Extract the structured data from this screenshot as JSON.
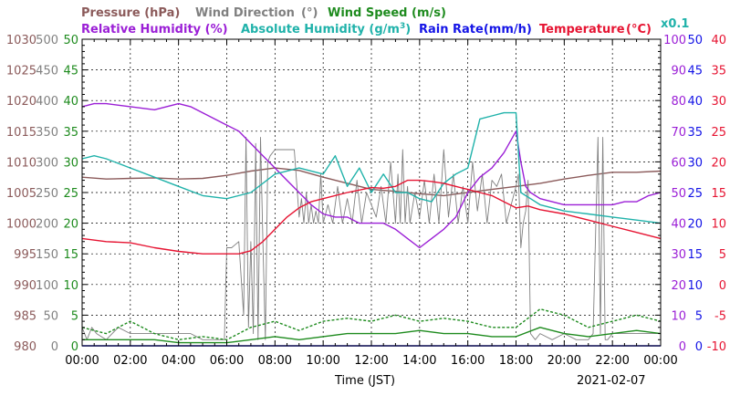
{
  "chart_data": {
    "type": "line",
    "date": "2021-02-07",
    "xlabel": "Time (JST)",
    "x_ticks": [
      "00:00",
      "02:00",
      "04:00",
      "06:00",
      "08:00",
      "10:00",
      "12:00",
      "14:00",
      "16:00",
      "18:00",
      "20:00",
      "22:00",
      "00:00"
    ],
    "grid": true,
    "axes": {
      "pressure": {
        "label": "Pressure (hPa)",
        "min": 980,
        "max": 1030,
        "ticks": [
          1030,
          1025,
          1020,
          1015,
          1010,
          1005,
          1000,
          995,
          990,
          985,
          980
        ],
        "color": "#8B5A5A"
      },
      "wind_direction": {
        "label": "Wind Direction",
        "unit": "(°)",
        "min": 0,
        "max": 500,
        "ticks": [
          500,
          450,
          400,
          350,
          300,
          250,
          200,
          150,
          100,
          50,
          0
        ],
        "color": "#808080"
      },
      "wind_speed": {
        "label": "Wind Speed (m/s)",
        "min": 0,
        "max": 50,
        "ticks": [
          50,
          45,
          40,
          35,
          30,
          25,
          20,
          15,
          10,
          5,
          0
        ],
        "color": "#1E8B1E"
      },
      "humidity": {
        "label": "Relative Humidity (%)",
        "min": 0,
        "max": 100,
        "ticks": [
          100,
          90,
          80,
          70,
          60,
          50,
          40,
          30,
          20,
          10,
          0
        ],
        "color": "#9B1FD6"
      },
      "rain_rate": {
        "label": "Rain Rate(mm/h)",
        "min": 0,
        "max": 50,
        "ticks": [
          50,
          45,
          40,
          35,
          30,
          25,
          20,
          15,
          10,
          5,
          0
        ],
        "color": "#1414E6"
      },
      "temperature": {
        "label": "Temperature",
        "unit": "(°C)",
        "min": -10,
        "max": 40,
        "ticks": [
          40,
          35,
          30,
          25,
          20,
          15,
          10,
          5,
          0,
          -5,
          -10
        ],
        "color": "#E61432"
      }
    },
    "abs_humidity_label": "Absolute Humidity (g/m",
    "abs_humidity_sup": "3",
    "abs_humidity_suffix": ")",
    "abs_humidity_scale": "x0.1",
    "abs_humidity_color": "#20B2AA",
    "series": [
      {
        "name": "Pressure (hPa)",
        "axis": "pressure",
        "color": "#8B5A5A",
        "x": [
          0,
          1,
          2,
          3,
          4,
          5,
          6,
          7,
          8,
          9,
          10,
          11,
          12,
          13,
          14,
          15,
          16,
          17,
          18,
          19,
          20,
          21,
          22,
          23,
          24
        ],
        "y": [
          1007.5,
          1007.2,
          1007.3,
          1007.4,
          1007.2,
          1007.3,
          1007.8,
          1008.5,
          1009,
          1008.6,
          1007.5,
          1006.5,
          1005.5,
          1005.2,
          1004.8,
          1004.5,
          1005,
          1005.5,
          1006,
          1006.5,
          1007.2,
          1007.8,
          1008.3,
          1008.3,
          1008.5
        ]
      },
      {
        "name": "Wind Direction (°)",
        "axis": "wind_direction",
        "color": "#808080",
        "x": [
          0,
          0.2,
          0.4,
          0.6,
          1,
          1.5,
          2,
          2.5,
          3,
          3.5,
          4,
          4.5,
          5,
          5.5,
          5.9,
          6,
          6.2,
          6.5,
          6.7,
          6.8,
          6.9,
          7,
          7.1,
          7.2,
          7.3,
          7.4,
          7.5,
          7.6,
          7.7,
          7.8,
          8,
          8.2,
          8.5,
          8.8,
          9,
          9.1,
          9.2,
          9.3,
          9.4,
          9.5,
          9.6,
          9.7,
          9.8,
          9.9,
          10,
          10.2,
          10.4,
          10.6,
          10.8,
          11,
          11.2,
          11.4,
          11.6,
          11.8,
          12,
          12.2,
          12.4,
          12.6,
          12.8,
          13,
          13.1,
          13.2,
          13.3,
          13.4,
          13.5,
          13.6,
          13.8,
          14,
          14.2,
          14.4,
          14.6,
          14.8,
          15,
          15.2,
          15.4,
          15.6,
          15.8,
          16,
          16.2,
          16.4,
          16.6,
          16.8,
          17,
          17.2,
          17.4,
          17.6,
          17.8,
          18,
          18.1,
          18.2,
          18.3,
          18.4,
          18.5,
          18.6,
          18.8,
          19,
          19.5,
          20,
          20.5,
          21,
          21.2,
          21.4,
          21.5,
          21.6,
          21.7,
          21.8,
          22,
          22.5,
          23,
          23.5,
          24
        ],
        "y": [
          30,
          10,
          30,
          20,
          10,
          30,
          20,
          20,
          20,
          20,
          20,
          20,
          10,
          10,
          10,
          160,
          160,
          170,
          50,
          340,
          30,
          170,
          20,
          330,
          10,
          340,
          170,
          10,
          300,
          310,
          320,
          320,
          320,
          320,
          210,
          240,
          200,
          250,
          200,
          230,
          200,
          220,
          200,
          280,
          200,
          230,
          200,
          260,
          200,
          240,
          200,
          270,
          200,
          250,
          230,
          210,
          260,
          200,
          300,
          200,
          280,
          200,
          320,
          200,
          260,
          200,
          250,
          210,
          270,
          200,
          280,
          200,
          320,
          210,
          280,
          200,
          260,
          200,
          300,
          220,
          280,
          200,
          270,
          260,
          280,
          200,
          230,
          260,
          280,
          160,
          200,
          220,
          270,
          20,
          10,
          20,
          10,
          20,
          10,
          10,
          20,
          340,
          20,
          340,
          10,
          10,
          20,
          20,
          20,
          20,
          20
        ]
      },
      {
        "name": "Wind Speed avg (m/s)",
        "axis": "wind_speed",
        "color": "#1E8B1E",
        "x": [
          0,
          1,
          2,
          3,
          4,
          5,
          6,
          7,
          8,
          9,
          10,
          11,
          12,
          13,
          14,
          15,
          16,
          17,
          18,
          19,
          20,
          21,
          22,
          23,
          24
        ],
        "y": [
          1,
          1,
          1,
          1,
          0.5,
          0.5,
          0.5,
          1,
          1.5,
          1,
          1.5,
          2,
          2,
          2,
          2.5,
          2,
          2,
          1.5,
          1.5,
          3,
          2,
          1.5,
          2,
          2.5,
          2
        ]
      },
      {
        "name": "Wind Speed max (m/s)",
        "axis": "wind_speed",
        "color": "#1E8B1E",
        "dashed": true,
        "x": [
          0,
          1,
          2,
          3,
          4,
          5,
          6,
          7,
          8,
          9,
          10,
          11,
          12,
          13,
          14,
          15,
          16,
          17,
          18,
          19,
          20,
          21,
          22,
          23,
          24
        ],
        "y": [
          3,
          2,
          4,
          2,
          1,
          1.5,
          1,
          3,
          4,
          2.5,
          4,
          4.5,
          4,
          5,
          4,
          4.5,
          4,
          3,
          3,
          6,
          5,
          3,
          4,
          5,
          4
        ]
      },
      {
        "name": "Relative Humidity (%)",
        "axis": "humidity",
        "color": "#9B1FD6",
        "x": [
          0,
          0.5,
          1,
          2,
          3,
          4,
          4.5,
          5,
          5.5,
          6,
          6.5,
          7,
          7.5,
          8,
          8.5,
          9,
          9.5,
          10,
          10.5,
          11,
          11.5,
          12,
          12.5,
          13,
          13.5,
          14,
          14.5,
          15,
          15.5,
          16,
          16.5,
          17,
          17.5,
          18,
          18.2,
          18.4,
          18.6,
          19,
          19.5,
          20,
          20.5,
          21,
          21.5,
          22,
          22.5,
          23,
          23.5,
          24
        ],
        "y": [
          78,
          79,
          79,
          78,
          77,
          79,
          78,
          76,
          74,
          72,
          70,
          66,
          62,
          58,
          54,
          50,
          46,
          43,
          42,
          42,
          40,
          40,
          40,
          38,
          35,
          32,
          35,
          38,
          42,
          50,
          55,
          58,
          63,
          70,
          60,
          52,
          50,
          48,
          47,
          46,
          46,
          46,
          46,
          46,
          47,
          47,
          49,
          50
        ]
      },
      {
        "name": "Absolute Humidity (g/m3 x0.1)",
        "axis": "humidity",
        "color": "#20B2AA",
        "x": [
          0,
          0.5,
          1,
          2,
          3,
          4,
          5,
          6,
          7,
          8,
          9,
          10,
          10.5,
          11,
          11.5,
          12,
          12.5,
          13,
          13.5,
          14,
          14.5,
          15,
          15.5,
          16,
          16.5,
          17,
          17.5,
          18,
          18.2,
          18.4,
          18.6,
          19,
          20,
          21,
          22,
          23,
          24
        ],
        "y": [
          61,
          62,
          61,
          58,
          55,
          52,
          49,
          48,
          50,
          56,
          58,
          56,
          62,
          52,
          58,
          50,
          56,
          50,
          50,
          48,
          47,
          53,
          56,
          58,
          74,
          75,
          76,
          76,
          50,
          49,
          48,
          46,
          44,
          43,
          42,
          41,
          40
        ]
      },
      {
        "name": "Rain Rate (mm/h)",
        "axis": "rain_rate",
        "color": "#1414E6",
        "x": [
          0,
          24
        ],
        "y": [
          0,
          0
        ]
      },
      {
        "name": "Temperature (°C)",
        "axis": "temperature",
        "color": "#E61432",
        "x": [
          0,
          1,
          2,
          3,
          4,
          5,
          6,
          6.5,
          7,
          7.5,
          8,
          8.5,
          9,
          9.5,
          10,
          11,
          12,
          12.5,
          13,
          13.5,
          14,
          14.5,
          15,
          15.5,
          16,
          16.5,
          17,
          17.5,
          18,
          18.5,
          19,
          20,
          21,
          22,
          23,
          24
        ],
        "y": [
          7.5,
          7,
          6.8,
          6,
          5.4,
          5,
          5,
          5,
          5.5,
          7,
          9,
          11,
          12.5,
          13.5,
          14,
          15,
          15.8,
          15.7,
          16,
          17,
          17,
          16.8,
          16.5,
          16,
          15.5,
          15,
          14.5,
          13.5,
          12.5,
          12.8,
          12.2,
          11.5,
          10.5,
          9.5,
          8.5,
          7.5
        ]
      }
    ]
  }
}
